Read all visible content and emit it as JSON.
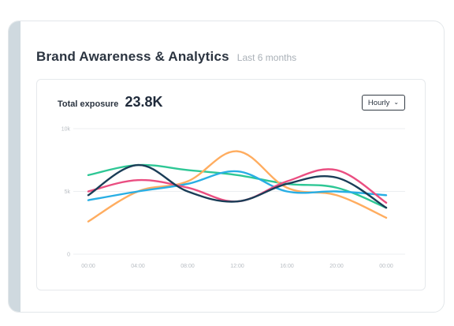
{
  "card": {
    "title": "Brand Awareness & Analytics",
    "subtitle": "Last 6 months"
  },
  "stat": {
    "label": "Total exposure",
    "value": "23.8K"
  },
  "filter": {
    "selected": "Hourly",
    "icon": "chevron-down-icon"
  },
  "chart_data": {
    "type": "line",
    "title": "",
    "xlabel": "",
    "ylabel": "",
    "ylim": [
      0,
      10000
    ],
    "yticks": [
      {
        "value": 0,
        "label": "0"
      },
      {
        "value": 5000,
        "label": "5k"
      },
      {
        "value": 10000,
        "label": "10k"
      }
    ],
    "categories": [
      "00:00",
      "04:00",
      "08:00",
      "12:00",
      "16:00",
      "20:00",
      "00:00"
    ],
    "grid": true,
    "legend": "none",
    "series": [
      {
        "color": "#2ec795",
        "values": [
          6300,
          7100,
          6700,
          6300,
          5600,
          5300,
          3700
        ]
      },
      {
        "color": "#ffad60",
        "values": [
          2600,
          5000,
          5800,
          8200,
          5300,
          4700,
          2900
        ]
      },
      {
        "color": "#28aee4",
        "values": [
          4300,
          5000,
          5600,
          6600,
          5000,
          5000,
          4700
        ]
      },
      {
        "color": "#ea4e81",
        "values": [
          5000,
          5900,
          5300,
          4200,
          5800,
          6700,
          4100
        ]
      },
      {
        "color": "#1a3d57",
        "values": [
          4700,
          7100,
          5000,
          4200,
          5600,
          6100,
          3700
        ]
      }
    ]
  }
}
